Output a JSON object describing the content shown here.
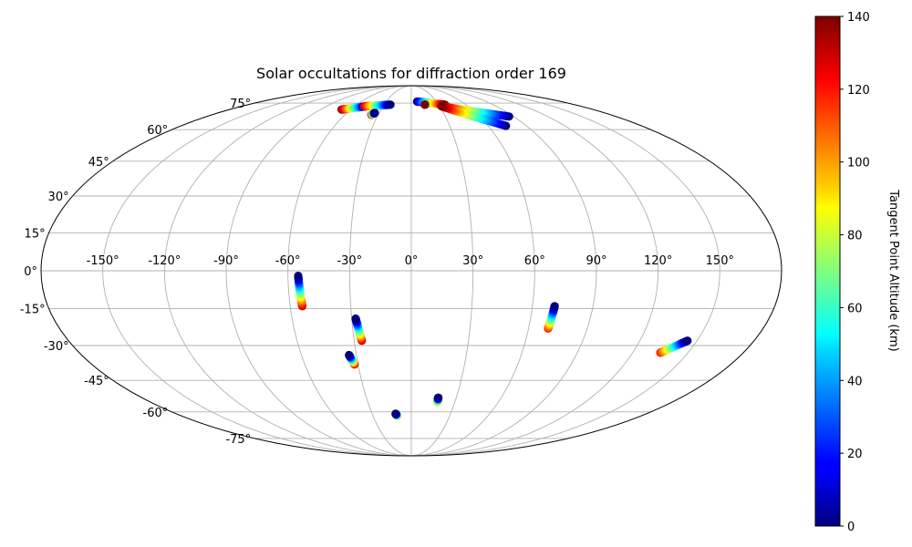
{
  "chart_data": {
    "type": "scatter",
    "projection": "mollweide",
    "title": "Solar occultations for diffraction order 169",
    "grid": true,
    "lon_ticks": [
      -150,
      -120,
      -90,
      -60,
      -30,
      0,
      30,
      60,
      90,
      120,
      150
    ],
    "lon_tick_labels": [
      "-150°",
      "-120°",
      "-90°",
      "-60°",
      "-30°",
      "0°",
      "30°",
      "60°",
      "90°",
      "120°",
      "150°"
    ],
    "lat_ticks": [
      75,
      60,
      45,
      30,
      15,
      0,
      -15,
      -30,
      -45,
      -60,
      -75
    ],
    "lat_tick_labels": [
      "75°",
      "60°",
      "45°",
      "30°",
      "15°",
      "0°",
      "-15°",
      "-30°",
      "-45°",
      "-60°",
      "-75°"
    ],
    "colorbar": {
      "label": "Tangent Point Altitude (km)",
      "colormap": "jet",
      "range": [
        0,
        140
      ],
      "ticks": [
        0,
        20,
        40,
        60,
        80,
        100,
        120,
        140
      ],
      "tick_labels": [
        "0",
        "20",
        "40",
        "60",
        "80",
        "100",
        "120",
        "140"
      ]
    },
    "tracks": [
      {
        "lon_start": -55,
        "lat_start": -2,
        "alt_start": 0,
        "lon_end": -54,
        "lat_end": -14,
        "alt_end": 130
      },
      {
        "lon_start": -28,
        "lat_start": -19,
        "alt_start": 0,
        "lon_end": -26,
        "lat_end": -28,
        "alt_end": 130
      },
      {
        "lon_start": -34,
        "lat_start": -34,
        "alt_start": 0,
        "lon_end": -32,
        "lat_end": -38,
        "alt_end": 130
      },
      {
        "lon_start": -12,
        "lat_start": -61,
        "alt_start": 0,
        "lon_end": -11,
        "lat_end": -62,
        "alt_end": 100
      },
      {
        "lon_start": 18,
        "lat_start": -53,
        "alt_start": 0,
        "lon_end": 18,
        "lat_end": -55,
        "alt_end": 100
      },
      {
        "lon_start": 71,
        "lat_start": -14,
        "alt_start": 0,
        "lon_end": 70,
        "lat_end": -23,
        "alt_end": 120
      },
      {
        "lon_start": 145,
        "lat_start": -28,
        "alt_start": 0,
        "lon_end": 135,
        "lat_end": -33,
        "alt_end": 120
      },
      {
        "lon_start": -48,
        "lat_start": 73,
        "alt_start": 0,
        "lon_end": -69,
        "lat_end": 71,
        "alt_end": 140
      },
      {
        "lon_start": -23,
        "lat_start": 74,
        "alt_start": 0,
        "lon_end": -50,
        "lat_end": 73,
        "alt_end": 130
      },
      {
        "lon_start": -34,
        "lat_start": 69,
        "alt_start": 0,
        "lon_end": -36,
        "lat_end": 68,
        "alt_end": 140
      },
      {
        "lon_start": 37,
        "lat_start": 74,
        "alt_start": 140,
        "lon_end": 7,
        "lat_end": 76,
        "alt_end": 0
      },
      {
        "lon_start": 15,
        "lat_start": 74,
        "alt_start": 140,
        "lon_end": 15,
        "lat_end": 74,
        "alt_end": 140
      },
      {
        "lon_start": 32,
        "lat_start": 73,
        "alt_start": 140,
        "lon_end": 86,
        "lat_end": 67,
        "alt_end": 0
      },
      {
        "lon_start": 32,
        "lat_start": 73,
        "alt_start": 140,
        "lon_end": 74,
        "lat_end": 62,
        "alt_end": 0
      }
    ]
  }
}
